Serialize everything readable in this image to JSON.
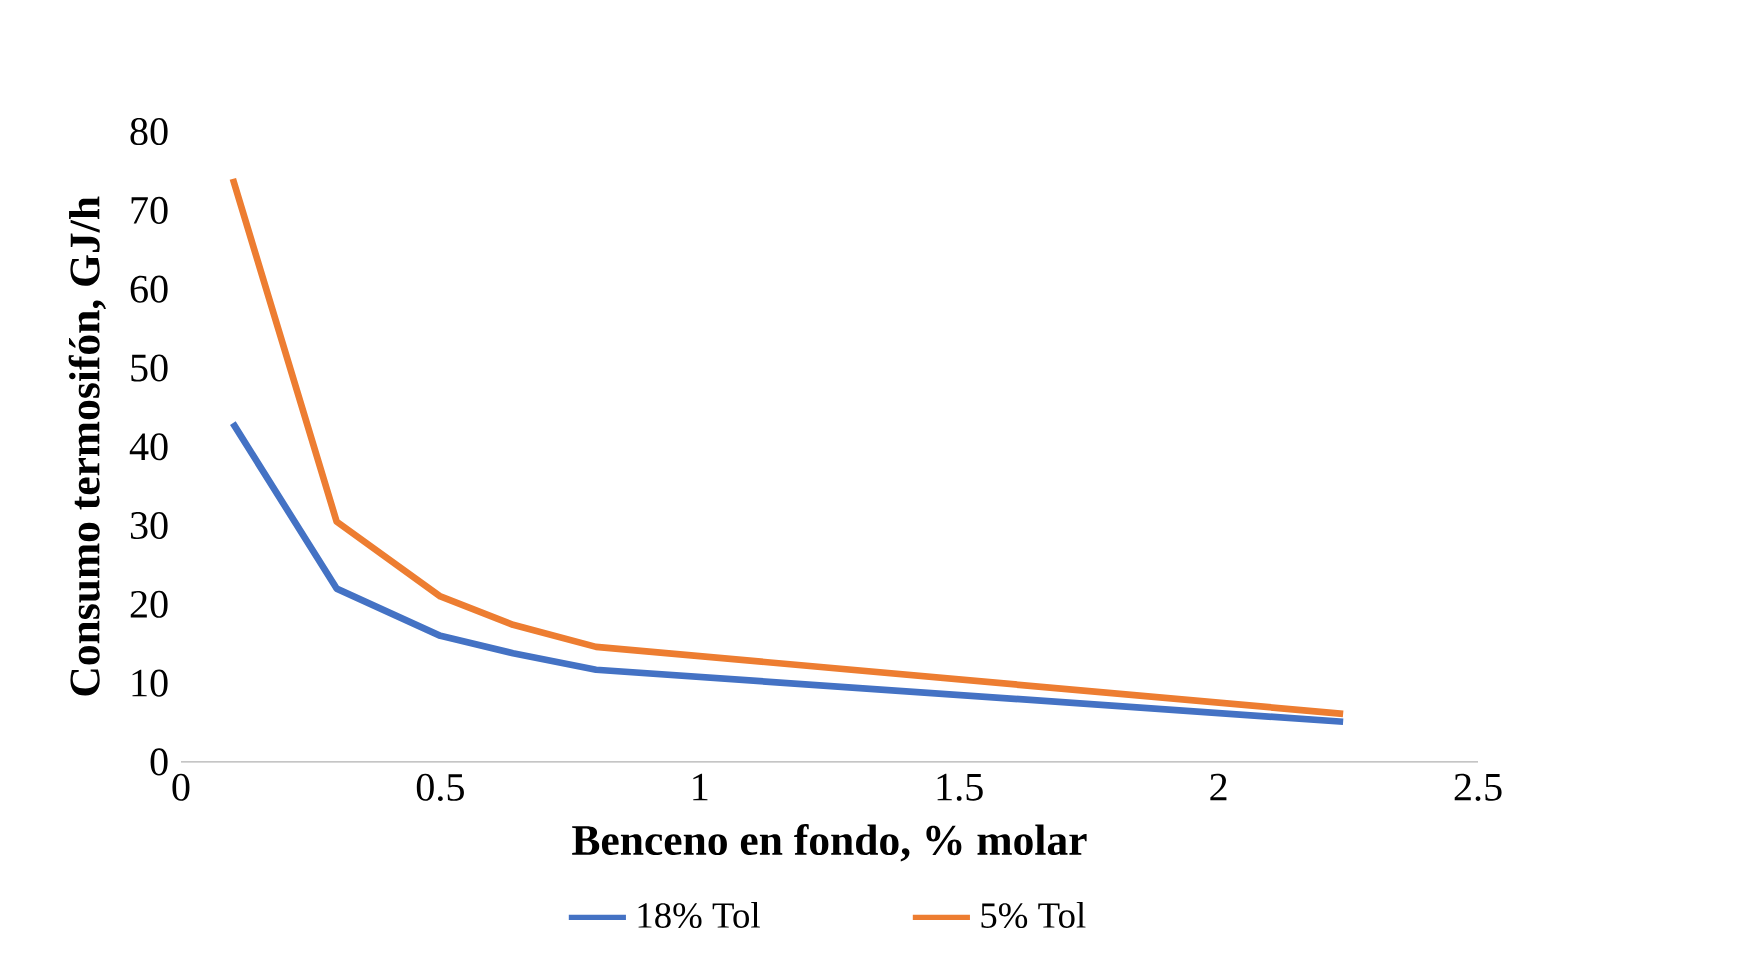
{
  "chart_data": {
    "type": "line",
    "xlabel": "Benceno en fondo, % molar",
    "ylabel": "Consumo termosifón, GJ/h",
    "xlim": [
      0,
      2.5
    ],
    "xticks": [
      0,
      0.5,
      1,
      1.5,
      2,
      2.5
    ],
    "ylim": [
      0,
      80
    ],
    "yticks": [
      0,
      10,
      20,
      30,
      40,
      50,
      60,
      70,
      80
    ],
    "grid": false,
    "legend": "bottom",
    "marker": "none",
    "line_style": "solid",
    "series": [
      {
        "name": "18% Tol",
        "color": "#4472c4",
        "x": [
          0.1,
          0.3,
          0.5,
          0.64,
          0.8,
          2.24
        ],
        "values": [
          43,
          22,
          16,
          13.8,
          11.7,
          5.1
        ]
      },
      {
        "name": "5% Tol",
        "color": "#ed7d31",
        "x": [
          0.1,
          0.3,
          0.5,
          0.64,
          0.8,
          2.24
        ],
        "values": [
          74,
          30.5,
          21,
          17.4,
          14.6,
          6.1
        ]
      }
    ]
  }
}
